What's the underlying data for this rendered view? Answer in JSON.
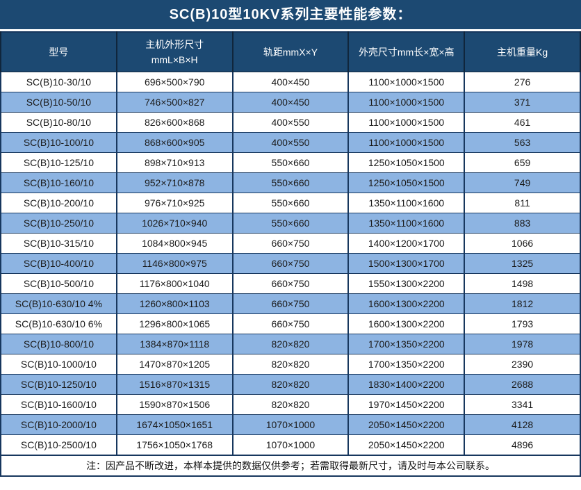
{
  "title": "SC(B)10型10KV系列主要性能参数：",
  "colors": {
    "title_bg": "#1C4972",
    "header_bg": "#1C4972",
    "header_text": "#FFFFFF",
    "row_alt_bg": "#8DB4E2",
    "row_bg": "#FFFFFF",
    "border": "#17375E",
    "body_text": "#1A1A1A"
  },
  "table": {
    "headers": [
      "型号",
      "主机外形尺寸\nmmL×B×H",
      "轨距mmX×Y",
      "外壳尺寸mm长×宽×高",
      "主机重量Kg"
    ],
    "column_keys": [
      "model",
      "dimensions",
      "gauge",
      "shell",
      "weight"
    ],
    "rows": [
      [
        "SC(B)10-30/10",
        "696×500×790",
        "400×450",
        "1100×1000×1500",
        "276"
      ],
      [
        "SC(B)10-50/10",
        "746×500×827",
        "400×450",
        "1100×1000×1500",
        "371"
      ],
      [
        "SC(B)10-80/10",
        "826×600×868",
        "400×550",
        "1100×1000×1500",
        "461"
      ],
      [
        "SC(B)10-100/10",
        "868×600×905",
        "400×550",
        "1100×1000×1500",
        "563"
      ],
      [
        "SC(B)10-125/10",
        "898×710×913",
        "550×660",
        "1250×1050×1500",
        "659"
      ],
      [
        "SC(B)10-160/10",
        "952×710×878",
        "550×660",
        "1250×1050×1500",
        "749"
      ],
      [
        "SC(B)10-200/10",
        "976×710×925",
        "550×660",
        "1350×1100×1600",
        "811"
      ],
      [
        "SC(B)10-250/10",
        "1026×710×940",
        "550×660",
        "1350×1100×1600",
        "883"
      ],
      [
        "SC(B)10-315/10",
        "1084×800×945",
        "660×750",
        "1400×1200×1700",
        "1066"
      ],
      [
        "SC(B)10-400/10",
        "1146×800×975",
        "660×750",
        "1500×1300×1700",
        "1325"
      ],
      [
        "SC(B)10-500/10",
        "1176×800×1040",
        "660×750",
        "1550×1300×2200",
        "1498"
      ],
      [
        "SC(B)10-630/10 4%",
        "1260×800×1103",
        "660×750",
        "1600×1300×2200",
        "1812"
      ],
      [
        "SC(B)10-630/10 6%",
        "1296×800×1065",
        "660×750",
        "1600×1300×2200",
        "1793"
      ],
      [
        "SC(B)10-800/10",
        "1384×870×1118",
        "820×820",
        "1700×1350×2200",
        "1978"
      ],
      [
        "SC(B)10-1000/10",
        "1470×870×1205",
        "820×820",
        "1700×1350×2200",
        "2390"
      ],
      [
        "SC(B)10-1250/10",
        "1516×870×1315",
        "820×820",
        "1830×1400×2200",
        "2688"
      ],
      [
        "SC(B)10-1600/10",
        "1590×870×1506",
        "820×820",
        "1970×1450×2200",
        "3341"
      ],
      [
        "SC(B)10-2000/10",
        "1674×1050×1651",
        "1070×1000",
        "2050×1450×2200",
        "4128"
      ],
      [
        "SC(B)10-2500/10",
        "1756×1050×1768",
        "1070×1000",
        "2050×1450×2200",
        "4896"
      ]
    ],
    "note": "注：因产品不断改进，本样本提供的数据仅供参考；若需取得最新尺寸，请及时与本公司联系。"
  }
}
